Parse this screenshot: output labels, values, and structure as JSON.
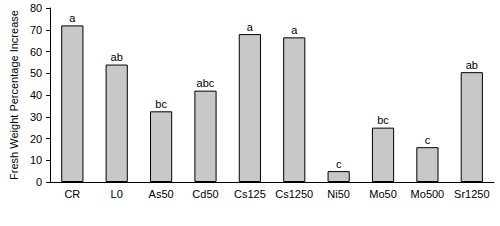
{
  "chart_data": {
    "type": "bar",
    "y_label": "Fresh Weight Percentage Increase",
    "categories": [
      "CR",
      "L0",
      "As50",
      "Cd50",
      "Cs125",
      "Cs1250",
      "Ni50",
      "Mo50",
      "Mo500",
      "Sr1250"
    ],
    "values": [
      72,
      54,
      32.5,
      42,
      68,
      66.5,
      5,
      25,
      16,
      50.5
    ],
    "annotations": [
      "a",
      "ab",
      "bc",
      "abc",
      "a",
      "a",
      "c",
      "bc",
      "c",
      "ab"
    ],
    "color": "#c8c8c8",
    "ylim": [
      0,
      80
    ],
    "yticks": [
      0,
      10,
      20,
      30,
      40,
      50,
      60,
      70,
      80
    ],
    "grid": false
  }
}
